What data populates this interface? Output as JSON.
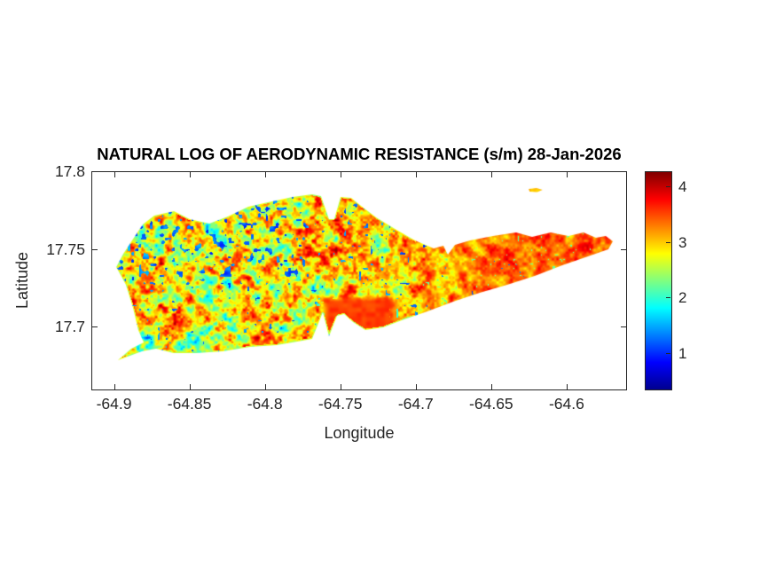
{
  "figure": {
    "title": "NATURAL LOG OF AERODYNAMIC RESISTANCE (s/m) 28-Jan-2026"
  },
  "colors": {
    "background": "#ffffff",
    "axis": "#262626",
    "title": "#000000",
    "colormap_name": "jet"
  },
  "chart_data": {
    "type": "heatmap",
    "title": "NATURAL LOG OF AERODYNAMIC RESISTANCE (s/m) 28-Jan-2026",
    "xlabel": "Longitude",
    "ylabel": "Latitude",
    "xlim": [
      -64.915,
      -64.56
    ],
    "ylim": [
      17.659,
      17.8
    ],
    "x_ticks": [
      -64.9,
      -64.85,
      -64.8,
      -64.75,
      -64.7,
      -64.65,
      -64.6
    ],
    "x_tick_labels": [
      "-64.9",
      "-64.85",
      "-64.8",
      "-64.75",
      "-64.7",
      "-64.65",
      "-64.6"
    ],
    "y_ticks": [
      17.7,
      17.75,
      17.8
    ],
    "y_tick_labels": [
      "17.7",
      "17.75",
      "17.8"
    ],
    "grid": false,
    "colorbar": {
      "vmin": 0.33,
      "vmax": 4.27,
      "ticks": [
        1,
        2,
        3,
        4
      ],
      "tick_labels": [
        "1",
        "2",
        "3",
        "4"
      ],
      "colormap": "jet",
      "position": "right"
    },
    "island_outline": [
      [
        -64.8974,
        17.6784
      ],
      [
        -64.8886,
        17.6858
      ],
      [
        -64.8803,
        17.6898
      ],
      [
        -64.8839,
        17.6978
      ],
      [
        -64.8874,
        17.7121
      ],
      [
        -64.8921,
        17.7269
      ],
      [
        -64.8985,
        17.7383
      ],
      [
        -64.8938,
        17.7469
      ],
      [
        -64.888,
        17.7555
      ],
      [
        -64.8809,
        17.7657
      ],
      [
        -64.8733,
        17.7715
      ],
      [
        -64.8603,
        17.7743
      ],
      [
        -64.8498,
        17.7692
      ],
      [
        -64.8368,
        17.7663
      ],
      [
        -64.8245,
        17.7709
      ],
      [
        -64.811,
        17.7772
      ],
      [
        -64.798,
        17.78
      ],
      [
        -64.7816,
        17.7834
      ],
      [
        -64.7687,
        17.7852
      ],
      [
        -64.7628,
        17.784
      ],
      [
        -64.7575,
        17.7692
      ],
      [
        -64.754,
        17.7692
      ],
      [
        -64.7498,
        17.7834
      ],
      [
        -64.7428,
        17.7829
      ],
      [
        -64.7363,
        17.7777
      ],
      [
        -64.7263,
        17.7703
      ],
      [
        -64.7128,
        17.7623
      ],
      [
        -64.7005,
        17.7555
      ],
      [
        -64.6881,
        17.7503
      ],
      [
        -64.6817,
        17.752
      ],
      [
        -64.6787,
        17.7463
      ],
      [
        -64.674,
        17.7526
      ],
      [
        -64.664,
        17.7555
      ],
      [
        -64.6488,
        17.7583
      ],
      [
        -64.6335,
        17.7606
      ],
      [
        -64.6229,
        17.7578
      ],
      [
        -64.6106,
        17.7606
      ],
      [
        -64.5988,
        17.7583
      ],
      [
        -64.5888,
        17.7606
      ],
      [
        -64.5806,
        17.7572
      ],
      [
        -64.5741,
        17.7583
      ],
      [
        -64.5694,
        17.7549
      ],
      [
        -64.5724,
        17.7498
      ],
      [
        -64.5859,
        17.7452
      ],
      [
        -64.6029,
        17.7395
      ],
      [
        -64.6211,
        17.7326
      ],
      [
        -64.6394,
        17.7269
      ],
      [
        -64.6576,
        17.7218
      ],
      [
        -64.6752,
        17.7161
      ],
      [
        -64.6923,
        17.7098
      ],
      [
        -64.7093,
        17.7041
      ],
      [
        -64.7216,
        17.6995
      ],
      [
        -64.7334,
        17.6978
      ],
      [
        -64.7416,
        17.703
      ],
      [
        -64.7475,
        17.7081
      ],
      [
        -64.7522,
        17.707
      ],
      [
        -64.7575,
        17.6938
      ],
      [
        -64.7616,
        17.7092
      ],
      [
        -64.7687,
        17.6921
      ],
      [
        -64.7751,
        17.691
      ],
      [
        -64.7922,
        17.6881
      ],
      [
        -64.8098,
        17.687
      ],
      [
        -64.828,
        17.6841
      ],
      [
        -64.8457,
        17.683
      ],
      [
        -64.8604,
        17.683
      ],
      [
        -64.8721,
        17.6858
      ],
      [
        -64.8815,
        17.6841
      ]
    ],
    "islet_outline": [
      [
        -64.6252,
        17.7886
      ],
      [
        -64.62,
        17.7892
      ],
      [
        -64.616,
        17.788
      ],
      [
        -64.6195,
        17.7866
      ],
      [
        -64.6245,
        17.7869
      ]
    ],
    "texture": {
      "seed": 7,
      "base_value_west": 2.82,
      "base_value_east": 3.34,
      "noise_amp_west": 0.95,
      "noise_amp_east": 0.45,
      "blue_spot_value": 1.25,
      "green_speck_value": 2.2,
      "red_patch": {
        "lon": [
          -64.769,
          -64.708
        ],
        "lat": [
          17.694,
          17.722
        ],
        "value": 3.55
      },
      "coast_rim_value": 2.6
    }
  }
}
